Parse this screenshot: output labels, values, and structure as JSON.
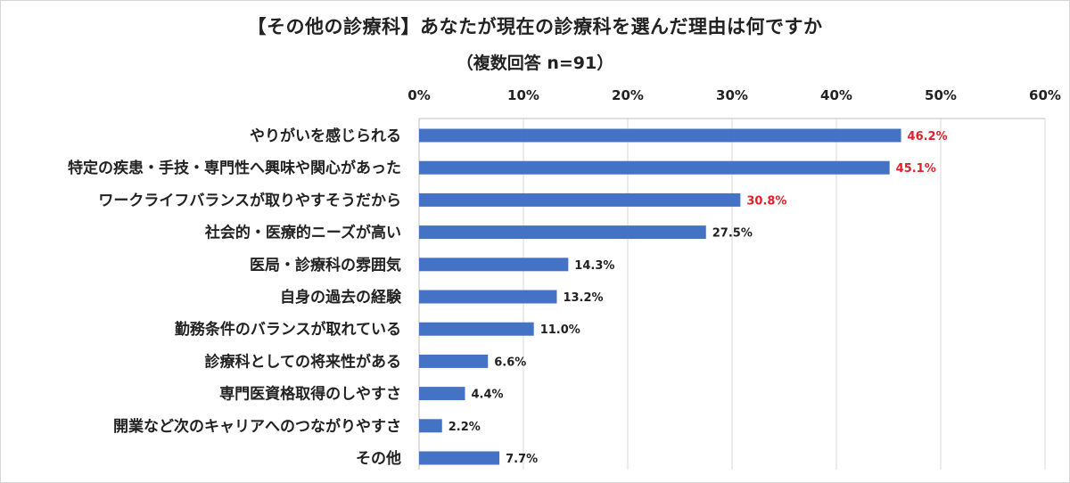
{
  "chart_data": {
    "type": "bar",
    "orientation": "horizontal",
    "title": "【その他の診療科】あなたが現在の診療科を選んだ理由は何ですか",
    "subtitle": "（複数回答 n=91）",
    "categories": [
      "やりがいを感じられる",
      "特定の疾患・手技・専門性へ興味や関心があった",
      "ワークライフバランスが取りやすそうだから",
      "社会的・医療的ニーズが高い",
      "医局・診療科の雰囲気",
      "自身の過去の経験",
      "勤務条件のバランスが取れている",
      "診療科としての将来性がある",
      "専門医資格取得のしやすさ",
      "開業など次のキャリアへのつながりやすさ",
      "その他"
    ],
    "values": [
      46.2,
      45.1,
      30.8,
      27.5,
      14.3,
      13.2,
      11.0,
      6.6,
      4.4,
      2.2,
      7.7
    ],
    "value_labels": [
      "46.2%",
      "45.1%",
      "30.8%",
      "27.5%",
      "14.3%",
      "13.2%",
      "11.0%",
      "6.6%",
      "4.4%",
      "2.2%",
      "7.7%"
    ],
    "highlight_top_n": 3,
    "xlim": [
      0,
      60
    ],
    "x_ticks": [
      0,
      10,
      20,
      30,
      40,
      50,
      60
    ],
    "x_tick_labels": [
      "0%",
      "10%",
      "20%",
      "30%",
      "40%",
      "50%",
      "60%"
    ],
    "axis_position": "top",
    "grid": true,
    "legend": "none",
    "colors": {
      "bar": "#4472C4",
      "highlight_label": "#E0202A",
      "label": "#222222",
      "grid": "#d9d9d9",
      "axis": "#bfbfbf"
    }
  }
}
